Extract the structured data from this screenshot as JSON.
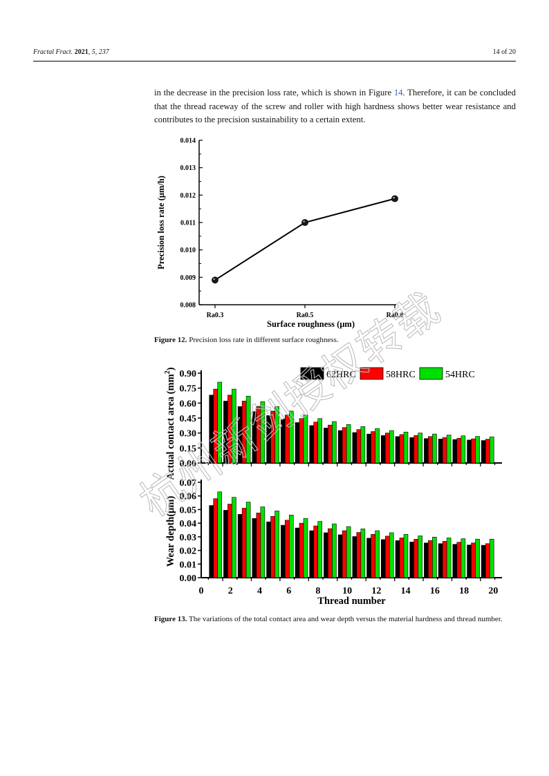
{
  "header": {
    "journal": "Fractal Fract.",
    "year": "2021",
    "volume": "5",
    "article": "237",
    "page": "14 of 20"
  },
  "paragraph": {
    "part1": "in the decrease in the precision loss rate, which is shown in Figure ",
    "fig_ref": "14",
    "part2": ". Therefore, it can be concluded that the thread raceway of the screw and roller with high hardness shows better wear resistance and contributes to the precision sustainability to a certain extent."
  },
  "figure12": {
    "label": "Figure 12.",
    "caption": "Precision loss rate in different surface roughness."
  },
  "figure13": {
    "label": "Figure 13.",
    "caption": "The variations of the total contact area and wear depth versus the material hardness and thread number."
  },
  "watermark": "杭州新剑授权转载",
  "chart_data": [
    {
      "type": "line",
      "xlabel": "Surface roughness (μm)",
      "ylabel": "Precision loss rate (μm/h)",
      "categories": [
        "Ra0.3",
        "Ra0.5",
        "Ra0.8"
      ],
      "values": [
        0.0089,
        0.011,
        0.01187
      ],
      "ylim": [
        0.008,
        0.014
      ],
      "yticks": [
        "0.008",
        "0.009",
        "0.010",
        "0.011",
        "0.012",
        "0.013",
        "0.014"
      ],
      "color": "#000000"
    },
    {
      "type": "bar",
      "ylabel_main": "Actual contact area (mm",
      "ylabel_sup": "2",
      "ylabel_end": ")",
      "ylim": [
        0,
        0.9
      ],
      "yticks": [
        "0.00",
        "0.15",
        "0.30",
        "0.45",
        "0.60",
        "0.75",
        "0.90"
      ],
      "x": [
        1,
        2,
        3,
        4,
        5,
        6,
        7,
        8,
        9,
        10,
        11,
        12,
        13,
        14,
        15,
        16,
        17,
        18,
        19,
        20
      ],
      "legend_position": "top-right",
      "series": [
        {
          "name": "62HRC",
          "color": "#000000",
          "values": [
            0.68,
            0.62,
            0.565,
            0.515,
            0.475,
            0.44,
            0.405,
            0.375,
            0.35,
            0.325,
            0.305,
            0.29,
            0.275,
            0.265,
            0.255,
            0.245,
            0.24,
            0.235,
            0.23,
            0.225
          ]
        },
        {
          "name": "58HRC",
          "color": "#ff0000",
          "values": [
            0.74,
            0.68,
            0.62,
            0.565,
            0.52,
            0.48,
            0.445,
            0.41,
            0.38,
            0.355,
            0.335,
            0.315,
            0.3,
            0.285,
            0.275,
            0.265,
            0.255,
            0.248,
            0.242,
            0.238
          ]
        },
        {
          "name": "54HRC",
          "color": "#00e000",
          "values": [
            0.81,
            0.74,
            0.67,
            0.615,
            0.565,
            0.52,
            0.48,
            0.445,
            0.415,
            0.385,
            0.365,
            0.345,
            0.325,
            0.31,
            0.3,
            0.29,
            0.28,
            0.272,
            0.266,
            0.262
          ]
        }
      ]
    },
    {
      "type": "bar",
      "ylabel": "Wear depth(μm)",
      "xlabel": "Thread number",
      "ylim": [
        0,
        0.07
      ],
      "yticks": [
        "0.00",
        "0.01",
        "0.02",
        "0.03",
        "0.04",
        "0.05",
        "0.06",
        "0.07"
      ],
      "xlim": [
        0,
        21
      ],
      "xticks": [
        "0",
        "2",
        "4",
        "6",
        "8",
        "10",
        "12",
        "14",
        "16",
        "18",
        "20"
      ],
      "x": [
        1,
        2,
        3,
        4,
        5,
        6,
        7,
        8,
        9,
        10,
        11,
        12,
        13,
        14,
        15,
        16,
        17,
        18,
        19,
        20
      ],
      "series": [
        {
          "name": "62HRC",
          "color": "#000000",
          "values": [
            0.053,
            0.0495,
            0.0465,
            0.0435,
            0.041,
            0.0385,
            0.0365,
            0.0345,
            0.033,
            0.0315,
            0.0302,
            0.029,
            0.028,
            0.0272,
            0.0262,
            0.0255,
            0.025,
            0.0245,
            0.024,
            0.0238
          ]
        },
        {
          "name": "58HRC",
          "color": "#ff0000",
          "values": [
            0.058,
            0.054,
            0.051,
            0.0475,
            0.045,
            0.0422,
            0.04,
            0.038,
            0.036,
            0.0345,
            0.0332,
            0.0318,
            0.0305,
            0.0292,
            0.0282,
            0.0273,
            0.0267,
            0.026,
            0.0255,
            0.025
          ]
        },
        {
          "name": "54HRC",
          "color": "#00e000",
          "values": [
            0.063,
            0.059,
            0.0555,
            0.052,
            0.049,
            0.046,
            0.0435,
            0.0413,
            0.0395,
            0.0375,
            0.0358,
            0.0345,
            0.033,
            0.0318,
            0.0307,
            0.0298,
            0.0292,
            0.0286,
            0.0283,
            0.0283
          ]
        }
      ]
    }
  ]
}
